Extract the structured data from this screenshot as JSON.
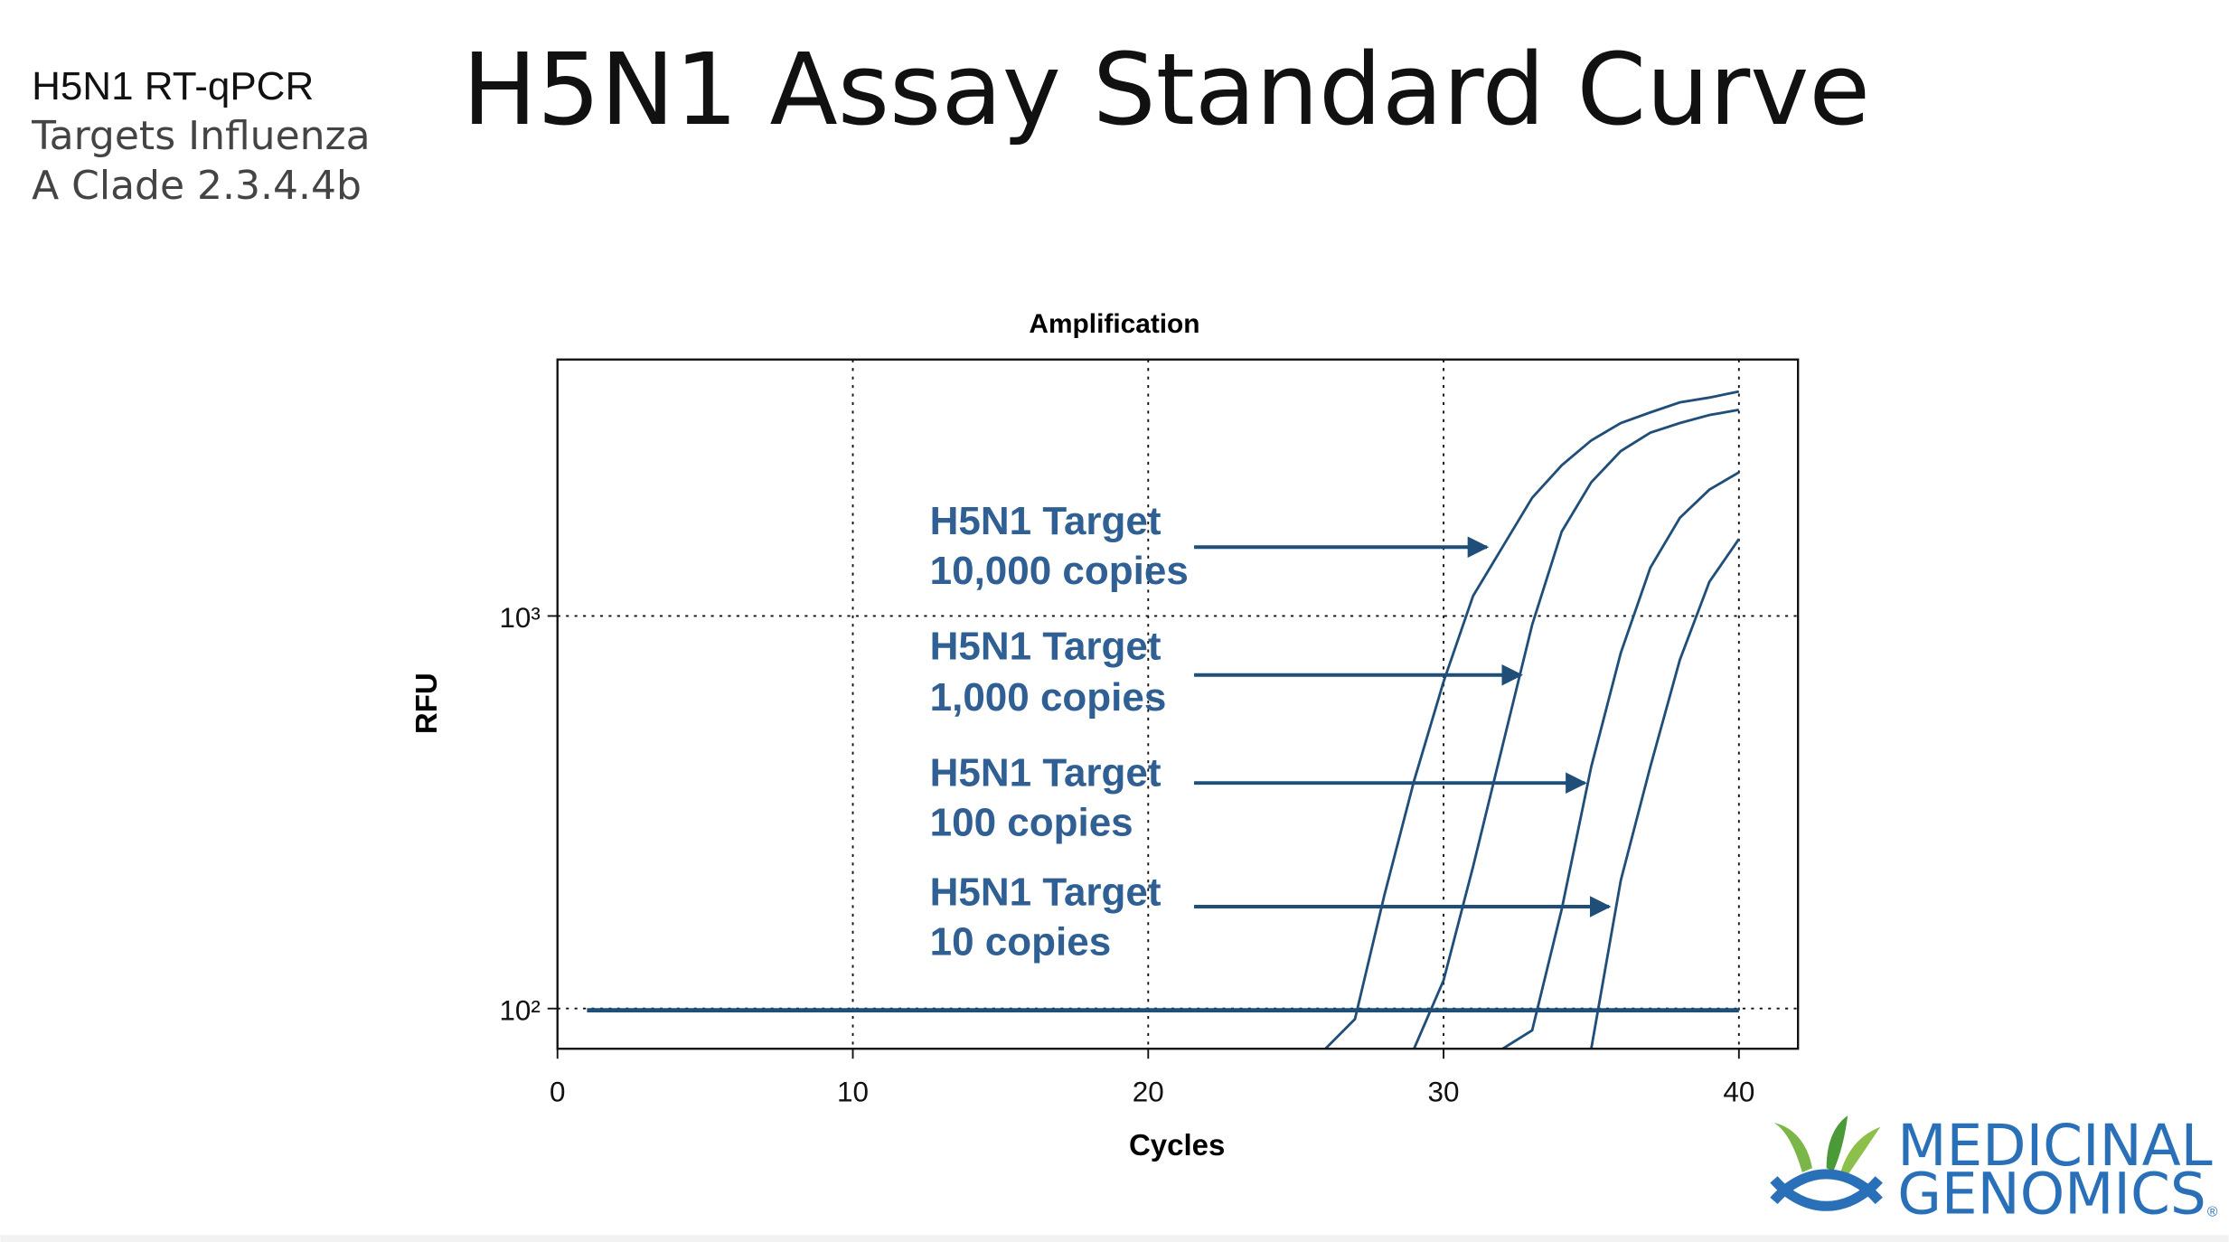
{
  "side_note": [
    "H5N1 RT-qPCR",
    "Targets Influenza",
    "A Clade 2.3.4.4b"
  ],
  "title": "H5N1 Assay Standard Curve",
  "logo": [
    "MEDICINAL",
    "GENOMICS",
    "®"
  ],
  "annotations": [
    [
      "H5N1 Target",
      "10,000 copies"
    ],
    [
      "H5N1 Target",
      "1,000 copies"
    ],
    [
      "H5N1 Target",
      "100 copies"
    ],
    [
      "H5N1 Target",
      "10 copies"
    ]
  ],
  "chart_data": {
    "type": "line",
    "title": "Amplification",
    "x_label": "Cycles",
    "y_label": "RFU",
    "log_y": true,
    "grid": true,
    "xlim": [
      0,
      42
    ],
    "xticks": [
      0,
      10,
      20,
      30,
      40
    ],
    "ylim": [
      79,
      4500
    ],
    "yticks": [
      {
        "value": 100,
        "label": "10²"
      },
      {
        "value": 1000,
        "label": "10³"
      }
    ],
    "x": [
      1,
      2,
      3,
      4,
      5,
      6,
      7,
      8,
      9,
      10,
      11,
      12,
      13,
      14,
      15,
      16,
      17,
      18,
      19,
      20,
      21,
      22,
      23,
      24,
      25,
      26,
      27,
      28,
      29,
      30,
      31,
      32,
      33,
      34,
      35,
      36,
      37,
      38,
      39,
      40
    ],
    "series": [
      {
        "color": "#1f4e79",
        "values": [
          99,
          99,
          99,
          99,
          99,
          99,
          99,
          99,
          99,
          99,
          99,
          99,
          99,
          99,
          99,
          99,
          99,
          99,
          99,
          99,
          99,
          99,
          99,
          99,
          99,
          99,
          99,
          99,
          99,
          99,
          99,
          99,
          99,
          99,
          99,
          99,
          99,
          99,
          99,
          99
        ]
      },
      {
        "color": "#1f4e79",
        "values": [
          null,
          null,
          null,
          null,
          null,
          null,
          null,
          null,
          null,
          null,
          null,
          null,
          null,
          null,
          null,
          null,
          null,
          null,
          null,
          null,
          null,
          null,
          null,
          null,
          null,
          79,
          94,
          195,
          380,
          680,
          1125,
          1500,
          2000,
          2420,
          2800,
          3100,
          3300,
          3500,
          3600,
          3730
        ]
      },
      {
        "color": "#1f4e79",
        "values": [
          null,
          null,
          null,
          null,
          null,
          null,
          null,
          null,
          null,
          null,
          null,
          null,
          null,
          null,
          null,
          null,
          null,
          null,
          null,
          null,
          null,
          null,
          null,
          null,
          null,
          null,
          null,
          null,
          79,
          118,
          230,
          468,
          950,
          1640,
          2190,
          2630,
          2930,
          3100,
          3250,
          3350
        ]
      },
      {
        "color": "#1f4e79",
        "values": [
          null,
          null,
          null,
          null,
          null,
          null,
          null,
          null,
          null,
          null,
          null,
          null,
          null,
          null,
          null,
          null,
          null,
          null,
          null,
          null,
          null,
          null,
          null,
          null,
          null,
          null,
          null,
          null,
          null,
          null,
          null,
          79,
          88,
          179,
          413,
          805,
          1327,
          1778,
          2098,
          2322
        ]
      },
      {
        "color": "#1f4e79",
        "values": [
          null,
          null,
          null,
          null,
          null,
          null,
          null,
          null,
          null,
          null,
          null,
          null,
          null,
          null,
          null,
          null,
          null,
          null,
          null,
          null,
          null,
          null,
          null,
          null,
          null,
          null,
          null,
          null,
          null,
          null,
          null,
          null,
          null,
          null,
          79,
          212,
          413,
          773,
          1222,
          1570
        ]
      }
    ]
  }
}
